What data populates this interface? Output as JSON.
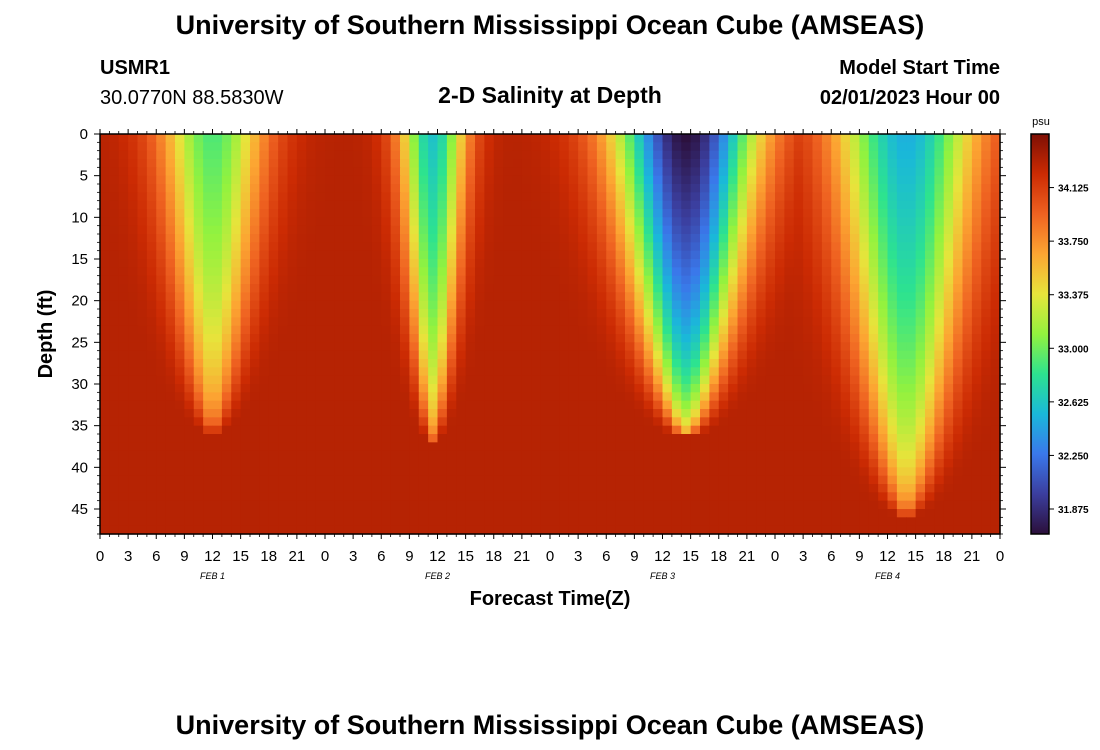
{
  "header": {
    "title": "University of Southern Mississippi Ocean Cube (AMSEAS)",
    "station_id": "USMR1",
    "coords": "30.0770N  88.5830W",
    "chart_title": "2-D Salinity at Depth",
    "model_start_label": "Model Start Time",
    "model_start_value": "02/01/2023 Hour 00"
  },
  "footer": {
    "title": "University of Southern Mississippi Ocean Cube (AMSEAS)"
  },
  "colors": {
    "scale": [
      "#2b0f3a",
      "#3b3e9e",
      "#3a78ea",
      "#1ab8d9",
      "#2de38f",
      "#93f23e",
      "#e7e43b",
      "#fca532",
      "#ef6221",
      "#cc2b03",
      "#7e0f04"
    ]
  },
  "chart_data": {
    "type": "heatmap",
    "title": "2-D Salinity at Depth",
    "xlabel": "Forecast Time(Z)",
    "ylabel": "Depth (ft)",
    "x_hours": [
      0,
      96
    ],
    "ylim": [
      0,
      48
    ],
    "y_ticks": [
      0,
      5,
      10,
      15,
      20,
      25,
      30,
      35,
      40,
      45
    ],
    "x_tick_labels": [
      "0",
      "3",
      "6",
      "9",
      "12",
      "15",
      "18",
      "21",
      "0",
      "3",
      "6",
      "9",
      "12",
      "15",
      "18",
      "21",
      "0",
      "3",
      "6",
      "9",
      "12",
      "15",
      "18",
      "21",
      "0",
      "3",
      "6",
      "9",
      "12",
      "15",
      "18",
      "21",
      "0"
    ],
    "day_labels": [
      {
        "label": "FEB 1",
        "hour": 12
      },
      {
        "label": "FEB 2",
        "hour": 36
      },
      {
        "label": "FEB 3",
        "hour": 60
      },
      {
        "label": "FEB 4",
        "hour": 84
      }
    ],
    "colorbar": {
      "unit": "psu",
      "range": [
        31.7,
        34.5
      ],
      "ticks": [
        "34.125",
        "33.750",
        "33.375",
        "33.000",
        "32.625",
        "32.250",
        "31.875"
      ]
    },
    "features": [
      {
        "hour_center": 12,
        "bottom_depth": 36,
        "width_hours": 5.5,
        "min_salinity": 32.9
      },
      {
        "hour_center": 35.5,
        "bottom_depth": 37,
        "width_hours": 3.5,
        "min_salinity": 32.6
      },
      {
        "hour_center": 62.5,
        "bottom_depth": 36.5,
        "width_hours": 7.5,
        "min_salinity": 31.7
      },
      {
        "hour_center": 86,
        "bottom_depth": 46,
        "width_hours": 7.5,
        "min_salinity": 32.5
      }
    ],
    "background_salinity": 34.3
  }
}
